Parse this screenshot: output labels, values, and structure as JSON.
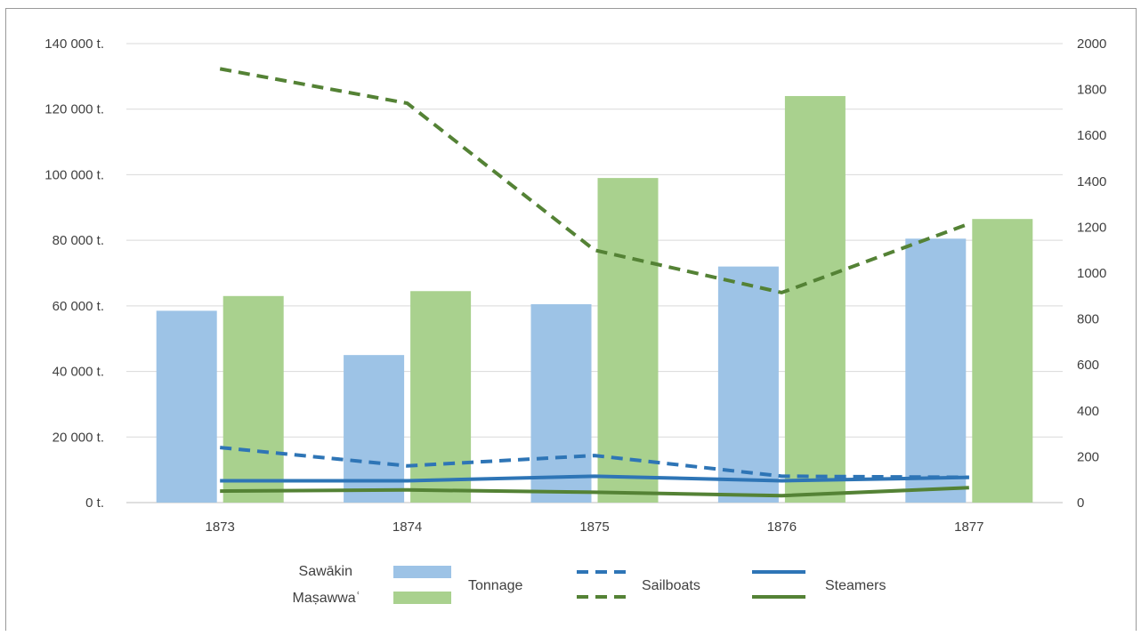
{
  "chart_data": {
    "type": "bar",
    "title": "",
    "xlabel": "",
    "ylabel": "",
    "categories": [
      "1873",
      "1874",
      "1875",
      "1876",
      "1877"
    ],
    "y_left": {
      "range": [
        0,
        140000
      ],
      "ticks": [
        0,
        20000,
        40000,
        60000,
        80000,
        100000,
        120000,
        140000
      ],
      "tick_labels": [
        "0 t.",
        "20 000 t.",
        "40 000 t.",
        "60 000 t.",
        "80 000 t.",
        "100 000 t.",
        "120 000 t.",
        "140 000 t."
      ]
    },
    "y_right": {
      "range": [
        0,
        2000
      ],
      "ticks": [
        0,
        200,
        400,
        600,
        800,
        1000,
        1200,
        1400,
        1600,
        1800,
        2000
      ],
      "tick_labels": [
        "0",
        "200",
        "400",
        "600",
        "800",
        "1000",
        "1200",
        "1400",
        "1600",
        "1800",
        "2000"
      ]
    },
    "grid": true,
    "legend_position": "bottom",
    "series": [
      {
        "name": "Tonnage",
        "port": "Sawākin",
        "kind": "bar",
        "axis": "left",
        "color": "#9dc3e6",
        "values": [
          58500,
          45000,
          60500,
          72000,
          80500
        ]
      },
      {
        "name": "Tonnage",
        "port": "Maṣawwaʿ",
        "kind": "bar",
        "axis": "left",
        "color": "#a9d18e",
        "values": [
          63000,
          64500,
          99000,
          124000,
          86500
        ]
      },
      {
        "name": "Sailboats",
        "port": "Sawākin",
        "kind": "line",
        "style": "dashed",
        "axis": "right",
        "color": "#2e75b6",
        "values": [
          240,
          160,
          205,
          115,
          110
        ]
      },
      {
        "name": "Sailboats",
        "port": "Maṣawwaʿ",
        "kind": "line",
        "style": "dashed",
        "axis": "right",
        "color": "#548235",
        "values": [
          1890,
          1740,
          1100,
          915,
          1215
        ]
      },
      {
        "name": "Steamers",
        "port": "Sawākin",
        "kind": "line",
        "style": "solid",
        "axis": "right",
        "color": "#2e75b6",
        "values": [
          95,
          95,
          115,
          95,
          110
        ]
      },
      {
        "name": "Steamers",
        "port": "Maṣawwaʿ",
        "kind": "line",
        "style": "solid",
        "axis": "right",
        "color": "#548235",
        "values": [
          50,
          55,
          45,
          30,
          65
        ]
      }
    ],
    "legend": {
      "ports": [
        "Sawākin",
        "Maṣawwaʿ"
      ],
      "tonnage": "Tonnage",
      "sailboats": "Sailboats",
      "steamers": "Steamers"
    }
  }
}
